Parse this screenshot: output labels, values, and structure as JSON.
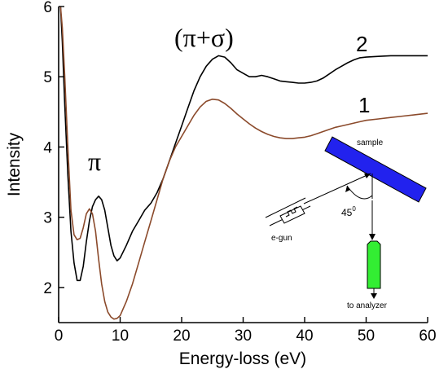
{
  "chart_data": {
    "type": "line",
    "xlabel": "Energy-loss (eV)",
    "ylabel": "Intensity",
    "xlim": [
      0,
      60
    ],
    "ylim": [
      1.5,
      6
    ],
    "xticks": [
      "0",
      "10",
      "20",
      "30",
      "40",
      "50",
      "60"
    ],
    "yticks": [
      "2",
      "3",
      "4",
      "5",
      "6"
    ],
    "series": [
      {
        "name": "2",
        "color": "#000000",
        "x": [
          0.3,
          0.6,
          1,
          1.5,
          2,
          2.5,
          3,
          3.5,
          4,
          4.5,
          5,
          5.5,
          6,
          6.5,
          7,
          7.5,
          8,
          8.5,
          9,
          9.5,
          10,
          11,
          12,
          13,
          14,
          15,
          16,
          17,
          18,
          19,
          20,
          21,
          22,
          23,
          24,
          25,
          26,
          27,
          28,
          29,
          30,
          31,
          32,
          33,
          34,
          35,
          36,
          37,
          38,
          39,
          40,
          41,
          42,
          43,
          44,
          45,
          46,
          47,
          48,
          49,
          50,
          52,
          54,
          56,
          58,
          60
        ],
        "y": [
          6,
          5.5,
          4.6,
          3.6,
          2.8,
          2.35,
          2.1,
          2.1,
          2.3,
          2.65,
          2.95,
          3.15,
          3.25,
          3.3,
          3.25,
          3.1,
          2.85,
          2.6,
          2.45,
          2.38,
          2.42,
          2.6,
          2.8,
          2.95,
          3.1,
          3.2,
          3.35,
          3.55,
          3.8,
          4.05,
          4.3,
          4.55,
          4.8,
          5.0,
          5.15,
          5.25,
          5.3,
          5.28,
          5.2,
          5.1,
          5.05,
          5.0,
          5.0,
          5.02,
          5.0,
          4.97,
          4.94,
          4.93,
          4.92,
          4.91,
          4.91,
          4.92,
          4.94,
          4.98,
          5.04,
          5.1,
          5.15,
          5.2,
          5.24,
          5.27,
          5.28,
          5.29,
          5.3,
          5.3,
          5.3,
          5.3
        ]
      },
      {
        "name": "1",
        "color": "#8b4a2b",
        "x": [
          0.3,
          0.6,
          1,
          1.5,
          2,
          2.5,
          3,
          3.5,
          4,
          4.5,
          5,
          5.5,
          6,
          6.5,
          7,
          7.5,
          8,
          8.5,
          9,
          9.5,
          10,
          11,
          12,
          13,
          14,
          15,
          16,
          17,
          18,
          19,
          20,
          21,
          22,
          23,
          24,
          25,
          26,
          27,
          28,
          29,
          30,
          31,
          32,
          33,
          34,
          35,
          36,
          37,
          38,
          39,
          40,
          41,
          42,
          43,
          44,
          45,
          46,
          47,
          48,
          49,
          50,
          52,
          54,
          56,
          58,
          60
        ],
        "y": [
          6,
          5.7,
          5.0,
          4.0,
          3.1,
          2.75,
          2.68,
          2.7,
          2.85,
          3.05,
          3.12,
          3.05,
          2.8,
          2.4,
          2.05,
          1.8,
          1.65,
          1.58,
          1.55,
          1.56,
          1.6,
          1.8,
          2.05,
          2.35,
          2.65,
          2.95,
          3.25,
          3.55,
          3.8,
          4.0,
          4.15,
          4.3,
          4.45,
          4.57,
          4.65,
          4.68,
          4.67,
          4.62,
          4.55,
          4.47,
          4.4,
          4.33,
          4.27,
          4.22,
          4.18,
          4.15,
          4.13,
          4.12,
          4.12,
          4.13,
          4.14,
          4.16,
          4.19,
          4.22,
          4.25,
          4.28,
          4.3,
          4.32,
          4.34,
          4.36,
          4.38,
          4.4,
          4.42,
          4.44,
          4.46,
          4.48
        ]
      }
    ],
    "annotations": {
      "pi": "π",
      "pi_sigma": "(π+σ)",
      "label_2": "2",
      "label_1": "1"
    },
    "inset": {
      "sample_label": "sample",
      "gun_label": "e-gun",
      "angle_label": "45",
      "angle_superscript": "0",
      "analyzer_label": "to analyzer",
      "sample_color": "#2222ee",
      "analyzer_color": "#33ee33"
    }
  }
}
